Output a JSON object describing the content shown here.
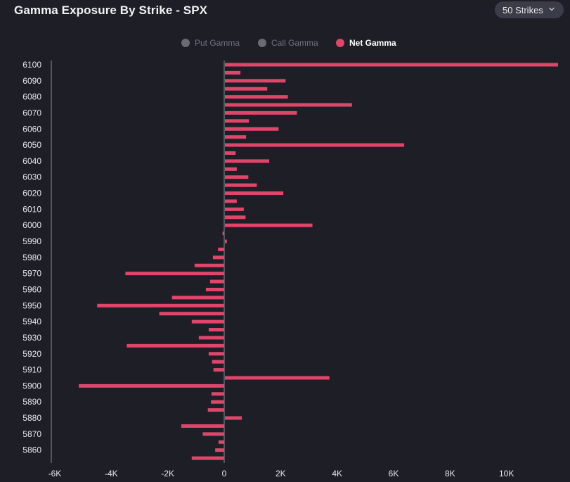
{
  "header": {
    "title": "Gamma Exposure By Strike - SPX",
    "strikes_selector": "50 Strikes"
  },
  "colors": {
    "background": "#1e1f26",
    "net_gamma": "#e0456c",
    "put_gamma_dot": "#6b6c73",
    "call_gamma_dot": "#6b6c73",
    "axis": "#8a8c96"
  },
  "legend": [
    {
      "label": "Put Gamma",
      "active": false,
      "color": "#6b6c73"
    },
    {
      "label": "Call Gamma",
      "active": false,
      "color": "#6b6c73"
    },
    {
      "label": "Net Gamma",
      "active": true,
      "color": "#e0456c"
    }
  ],
  "chart_data": {
    "type": "bar",
    "orientation": "horizontal",
    "title": "Gamma Exposure By Strike - SPX",
    "xlim": [
      -6000,
      11800
    ],
    "x_ticks": [
      -6000,
      -4000,
      -2000,
      0,
      2000,
      4000,
      6000,
      8000,
      10000
    ],
    "x_tick_labels": [
      "-6K",
      "-4K",
      "-2K",
      "0",
      "2K",
      "4K",
      "6K",
      "8K",
      "10K"
    ],
    "y_tick_labels": [
      "6100",
      "6090",
      "6080",
      "6070",
      "6060",
      "6050",
      "6040",
      "6030",
      "6020",
      "6010",
      "6000",
      "5990",
      "5980",
      "5970",
      "5960",
      "5950",
      "5940",
      "5930",
      "5920",
      "5910",
      "5900",
      "5890",
      "5880",
      "5870",
      "5860"
    ],
    "grid": false,
    "legend_position": "top-center",
    "series": [
      {
        "name": "Net Gamma",
        "data": [
          {
            "strike": 6100,
            "value": 11800
          },
          {
            "strike": 6095,
            "value": 550
          },
          {
            "strike": 6090,
            "value": 2150
          },
          {
            "strike": 6085,
            "value": 1500
          },
          {
            "strike": 6080,
            "value": 2230
          },
          {
            "strike": 6075,
            "value": 4500
          },
          {
            "strike": 6070,
            "value": 2550
          },
          {
            "strike": 6065,
            "value": 850
          },
          {
            "strike": 6060,
            "value": 1900
          },
          {
            "strike": 6055,
            "value": 750
          },
          {
            "strike": 6050,
            "value": 6350
          },
          {
            "strike": 6045,
            "value": 380
          },
          {
            "strike": 6040,
            "value": 1570
          },
          {
            "strike": 6035,
            "value": 420
          },
          {
            "strike": 6030,
            "value": 830
          },
          {
            "strike": 6025,
            "value": 1130
          },
          {
            "strike": 6020,
            "value": 2070
          },
          {
            "strike": 6015,
            "value": 420
          },
          {
            "strike": 6010,
            "value": 670
          },
          {
            "strike": 6005,
            "value": 730
          },
          {
            "strike": 6000,
            "value": 3100
          },
          {
            "strike": 5995,
            "value": -60
          },
          {
            "strike": 5990,
            "value": 70
          },
          {
            "strike": 5985,
            "value": -220
          },
          {
            "strike": 5980,
            "value": -400
          },
          {
            "strike": 5975,
            "value": -1050
          },
          {
            "strike": 5970,
            "value": -3500
          },
          {
            "strike": 5965,
            "value": -500
          },
          {
            "strike": 5960,
            "value": -650
          },
          {
            "strike": 5955,
            "value": -1850
          },
          {
            "strike": 5950,
            "value": -4500
          },
          {
            "strike": 5945,
            "value": -2300
          },
          {
            "strike": 5940,
            "value": -1150
          },
          {
            "strike": 5935,
            "value": -550
          },
          {
            "strike": 5930,
            "value": -900
          },
          {
            "strike": 5925,
            "value": -3450
          },
          {
            "strike": 5920,
            "value": -550
          },
          {
            "strike": 5915,
            "value": -430
          },
          {
            "strike": 5910,
            "value": -380
          },
          {
            "strike": 5905,
            "value": 3700
          },
          {
            "strike": 5900,
            "value": -5150
          },
          {
            "strike": 5895,
            "value": -450
          },
          {
            "strike": 5890,
            "value": -470
          },
          {
            "strike": 5885,
            "value": -580
          },
          {
            "strike": 5880,
            "value": 600
          },
          {
            "strike": 5875,
            "value": -1520
          },
          {
            "strike": 5870,
            "value": -760
          },
          {
            "strike": 5865,
            "value": -200
          },
          {
            "strike": 5860,
            "value": -320
          },
          {
            "strike": 5855,
            "value": -1150
          }
        ]
      }
    ]
  }
}
